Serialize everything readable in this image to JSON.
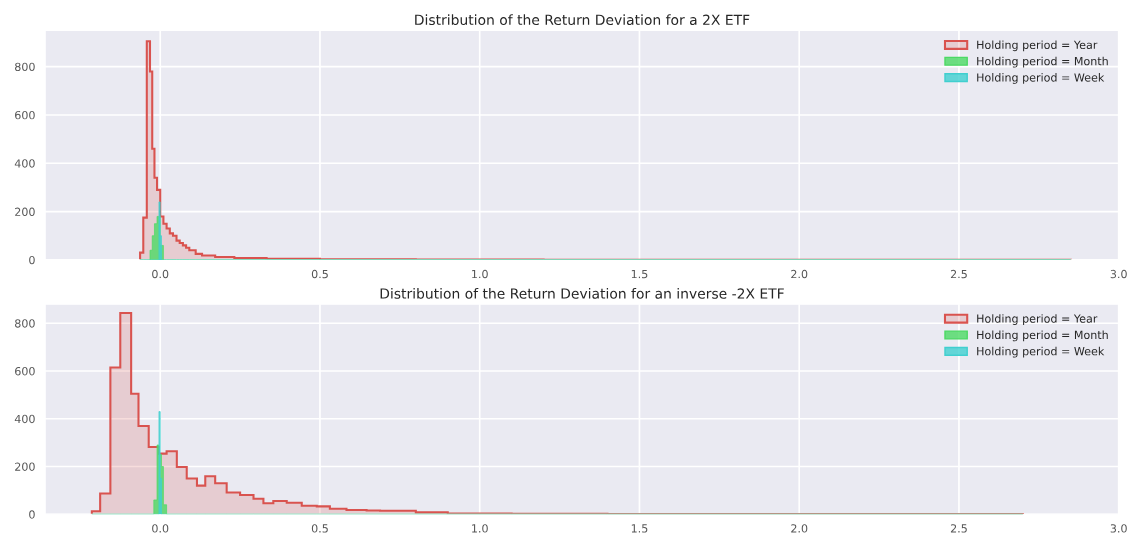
{
  "chart_data": [
    {
      "type": "histogram",
      "title": "Distribution of the Return Deviation for a 2X ETF",
      "bins": [
        -0.063,
        -0.053,
        -0.042,
        -0.032,
        -0.025,
        -0.018,
        -0.01,
        -0.004,
        0.0,
        0.004,
        0.01,
        0.02,
        0.03,
        0.04,
        0.051,
        0.061,
        0.071,
        0.081,
        0.091,
        0.111,
        0.131,
        0.172,
        0.232,
        0.333,
        0.5,
        0.8,
        1.2,
        2.0,
        2.85
      ],
      "series": [
        {
          "name": "Holding period = Year",
          "color": "#d9534f",
          "values": [
            30,
            175,
            905,
            780,
            460,
            340,
            290,
            290,
            180,
            180,
            150,
            130,
            110,
            100,
            80,
            70,
            60,
            50,
            40,
            25,
            18,
            12,
            8,
            5,
            3,
            2,
            1,
            1
          ]
        },
        {
          "name": "Holding period = Month",
          "color": "#4cd964",
          "values": [
            0,
            0,
            0,
            40,
            100,
            150,
            180,
            180,
            60,
            60,
            0,
            0,
            0,
            0,
            0,
            0,
            0,
            0,
            0,
            0,
            0,
            0,
            0,
            0,
            0,
            0,
            0,
            0
          ]
        },
        {
          "name": "Holding period = Week",
          "color": "#40cfcf",
          "values": [
            0,
            0,
            0,
            0,
            0,
            0,
            0,
            240,
            100,
            0,
            0,
            0,
            0,
            0,
            0,
            0,
            0,
            0,
            0,
            0,
            0,
            0,
            0,
            0,
            0,
            0,
            0,
            0
          ]
        }
      ],
      "xlim": [
        -0.36,
        3.0
      ],
      "ylim": [
        0,
        950
      ],
      "xticks": [
        {
          "value": 0,
          "label": "0.0"
        },
        {
          "value": 0.5,
          "label": "0.5"
        },
        {
          "value": 1,
          "label": "1.0"
        },
        {
          "value": 1.5,
          "label": "1.5"
        },
        {
          "value": 2,
          "label": "2.0"
        },
        {
          "value": 2.5,
          "label": "2.5"
        },
        {
          "value": 3,
          "label": "3.0"
        }
      ],
      "yticks": [
        0,
        200,
        400,
        600,
        800
      ],
      "grid": true,
      "legend": "top right"
    },
    {
      "type": "histogram",
      "title": "Distribution of the Return Deviation for an inverse -2X ETF",
      "bins": [
        -0.214,
        -0.188,
        -0.156,
        -0.125,
        -0.091,
        -0.068,
        -0.036,
        -0.02,
        -0.01,
        -0.004,
        0.0,
        0.004,
        0.01,
        0.02,
        0.052,
        0.083,
        0.115,
        0.141,
        0.172,
        0.208,
        0.25,
        0.292,
        0.323,
        0.354,
        0.396,
        0.443,
        0.49,
        0.531,
        0.583,
        0.646,
        0.688,
        0.8,
        0.9,
        1.1,
        1.4,
        2.7
      ],
      "series": [
        {
          "name": "Holding period = Year",
          "color": "#d9534f",
          "values": [
            13,
            87,
            615,
            843,
            505,
            370,
            282,
            282,
            282,
            254,
            254,
            254,
            254,
            264,
            198,
            150,
            120,
            159,
            130,
            91,
            81,
            65,
            46,
            56,
            48,
            36,
            33,
            23,
            18,
            16,
            15,
            8,
            3,
            2,
            1
          ]
        },
        {
          "name": "Holding period = Month",
          "color": "#4cd964",
          "values": [
            0,
            0,
            0,
            0,
            0,
            0,
            0,
            60,
            290,
            250,
            250,
            200,
            40,
            0,
            0,
            0,
            0,
            0,
            0,
            0,
            0,
            0,
            0,
            0,
            0,
            0,
            0,
            0,
            0,
            0,
            0,
            0,
            0,
            0,
            0
          ]
        },
        {
          "name": "Holding period = Week",
          "color": "#40cfcf",
          "values": [
            0,
            0,
            0,
            0,
            0,
            0,
            0,
            0,
            0,
            430,
            150,
            0,
            0,
            0,
            0,
            0,
            0,
            0,
            0,
            0,
            0,
            0,
            0,
            0,
            0,
            0,
            0,
            0,
            0,
            0,
            0,
            0,
            0,
            0,
            0
          ]
        }
      ],
      "xlim": [
        -0.36,
        3.0
      ],
      "ylim": [
        0,
        880
      ],
      "xticks": [
        {
          "value": 0,
          "label": "0.0"
        },
        {
          "value": 0.5,
          "label": "0.5"
        },
        {
          "value": 1,
          "label": "1.0"
        },
        {
          "value": 1.5,
          "label": "1.5"
        },
        {
          "value": 2,
          "label": "2.0"
        },
        {
          "value": 2.5,
          "label": "2.5"
        },
        {
          "value": 3,
          "label": "3.0"
        }
      ],
      "yticks": [
        0,
        200,
        400,
        600,
        800
      ],
      "grid": true,
      "legend": "top right"
    }
  ]
}
